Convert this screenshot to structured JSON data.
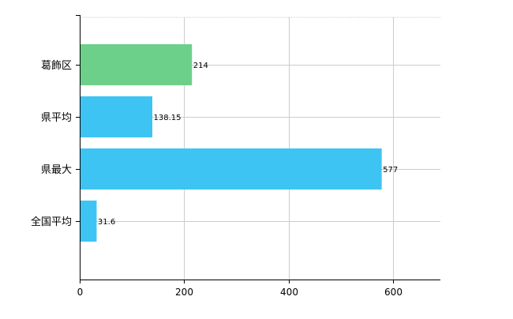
{
  "chart_data": {
    "type": "bar",
    "orientation": "horizontal",
    "categories": [
      "葛飾区",
      "県平均",
      "県最大",
      "全国平均"
    ],
    "values": [
      214,
      138.15,
      577,
      31.6
    ],
    "value_labels": [
      "214",
      "138.15",
      "577",
      "31.6"
    ],
    "bar_colors": [
      "#6dd08a",
      "#3ec4f2",
      "#3ec4f2",
      "#3ec4f2"
    ],
    "xlim": [
      0,
      690
    ],
    "x_ticks": [
      0,
      200,
      400,
      600
    ],
    "x_tick_labels": [
      "0",
      "200",
      "400",
      "600"
    ],
    "grid": true,
    "grid_color": "#cccccc",
    "axis_color": "#000000",
    "title": "",
    "xlabel": "",
    "ylabel": ""
  }
}
